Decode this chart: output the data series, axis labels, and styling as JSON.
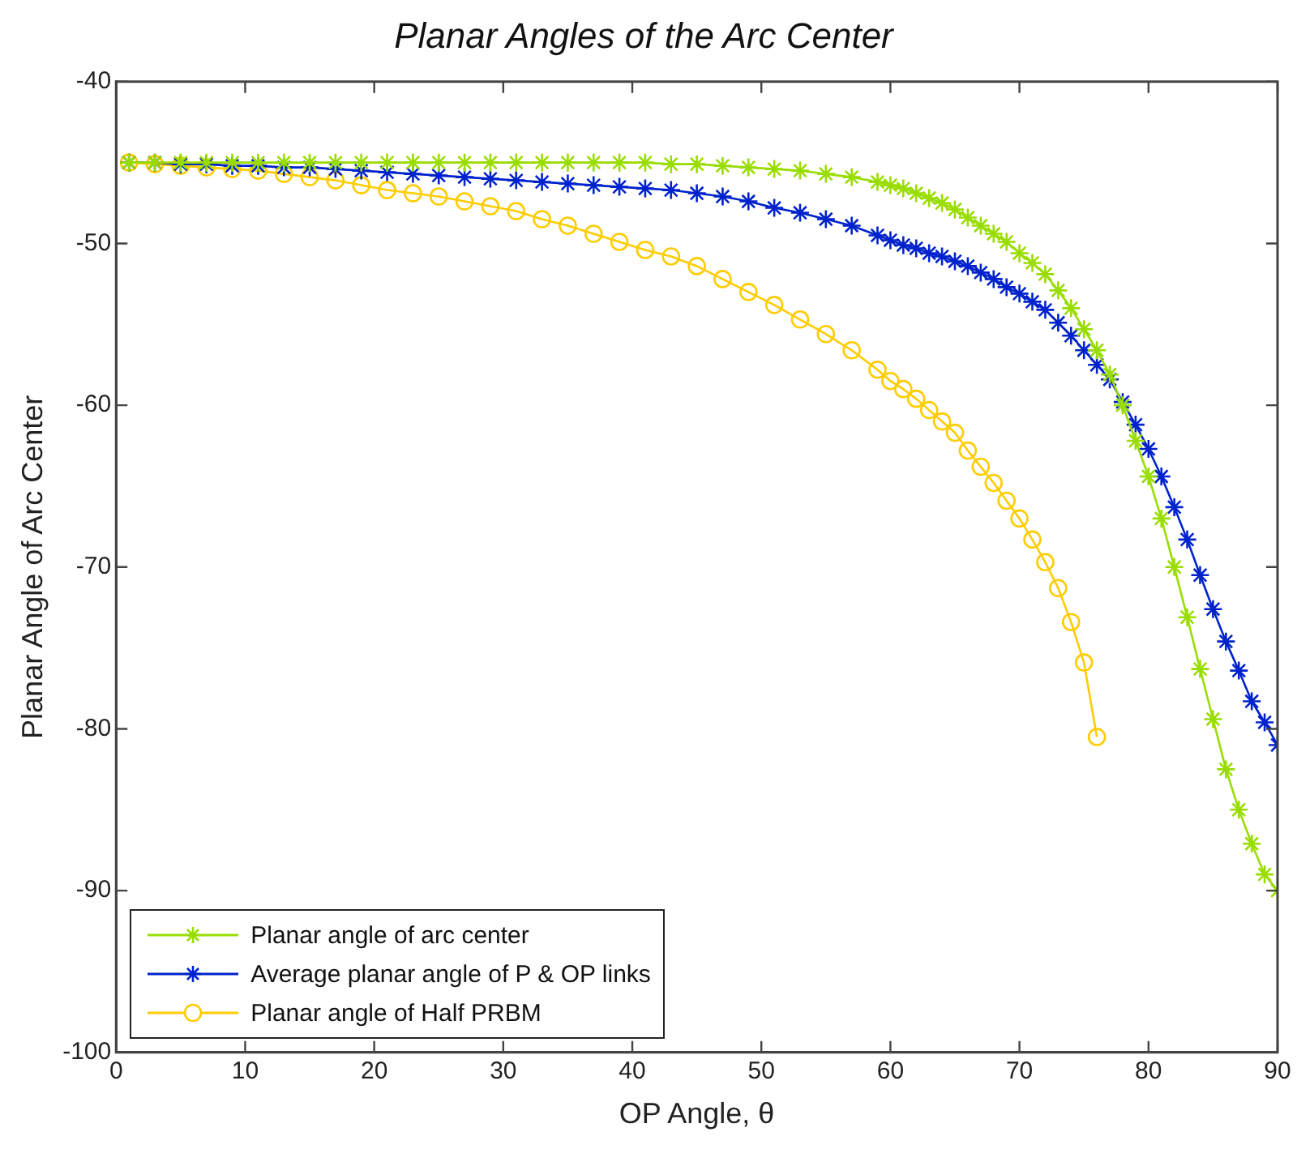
{
  "chart_data": {
    "type": "line",
    "title": "Planar Angles of the Arc Center",
    "xlabel": "OP Angle, θ",
    "ylabel": "Planar Angle of Arc Center",
    "xlim": [
      0,
      90
    ],
    "xticks": [
      0,
      10,
      20,
      30,
      40,
      50,
      60,
      70,
      80,
      90
    ],
    "ylim": [
      -100,
      -40
    ],
    "yticks": [
      -100,
      -90,
      -80,
      -70,
      -60,
      -50,
      -40
    ],
    "grid": false,
    "legend": "bottom left",
    "line_style": "solid",
    "series": [
      {
        "name": "Planar angle of arc center",
        "color": "#99dd00",
        "marker": "cross",
        "x": [
          1,
          3,
          5,
          7,
          9,
          11,
          13,
          15,
          17,
          19,
          21,
          23,
          25,
          27,
          29,
          31,
          33,
          35,
          37,
          39,
          41,
          43,
          45,
          47,
          49,
          51,
          53,
          55,
          57,
          59,
          60,
          61,
          62,
          63,
          64,
          65,
          66,
          67,
          68,
          69,
          70,
          71,
          72,
          73,
          74,
          75,
          76,
          77,
          78,
          79,
          80,
          81,
          82,
          83,
          84,
          85,
          86,
          87,
          88,
          89,
          90
        ],
        "values": [
          -45,
          -45,
          -45,
          -45,
          -45,
          -45,
          -45,
          -45,
          -45,
          -45,
          -45,
          -45,
          -45,
          -45,
          -45,
          -45,
          -45,
          -45,
          -45,
          -45,
          -45,
          -45.1,
          -45.1,
          -45.2,
          -45.3,
          -45.4,
          -45.5,
          -45.7,
          -45.9,
          -46.2,
          -46.4,
          -46.6,
          -46.9,
          -47.2,
          -47.5,
          -47.9,
          -48.4,
          -48.9,
          -49.4,
          -49.9,
          -50.6,
          -51.2,
          -51.9,
          -52.9,
          -54,
          -55.3,
          -56.6,
          -58.1,
          -60,
          -62.2,
          -64.4,
          -67,
          -70,
          -73.1,
          -76.3,
          -79.4,
          -82.5,
          -85,
          -87.1,
          -89,
          -90
        ]
      },
      {
        "name": "Average planar angle of P & OP links",
        "color": "#0022cc",
        "marker": "cross",
        "x": [
          1,
          3,
          5,
          7,
          9,
          11,
          13,
          15,
          17,
          19,
          21,
          23,
          25,
          27,
          29,
          31,
          33,
          35,
          37,
          39,
          41,
          43,
          45,
          47,
          49,
          51,
          53,
          55,
          57,
          59,
          60,
          61,
          62,
          63,
          64,
          65,
          66,
          67,
          68,
          69,
          70,
          71,
          72,
          73,
          74,
          75,
          76,
          77,
          78,
          79,
          80,
          81,
          82,
          83,
          84,
          85,
          86,
          87,
          88,
          89,
          90
        ],
        "values": [
          -45,
          -45,
          -45.1,
          -45.1,
          -45.2,
          -45.2,
          -45.3,
          -45.3,
          -45.4,
          -45.5,
          -45.6,
          -45.7,
          -45.8,
          -45.9,
          -46,
          -46.1,
          -46.2,
          -46.3,
          -46.4,
          -46.5,
          -46.6,
          -46.7,
          -46.9,
          -47.1,
          -47.4,
          -47.8,
          -48.1,
          -48.5,
          -48.9,
          -49.5,
          -49.8,
          -50.1,
          -50.3,
          -50.6,
          -50.8,
          -51.1,
          -51.4,
          -51.8,
          -52.2,
          -52.7,
          -53.1,
          -53.6,
          -54.1,
          -54.9,
          -55.7,
          -56.6,
          -57.5,
          -58.4,
          -59.8,
          -61.2,
          -62.7,
          -64.4,
          -66.3,
          -68.3,
          -70.5,
          -72.6,
          -74.6,
          -76.4,
          -78.3,
          -79.6,
          -81
        ]
      },
      {
        "name": "Planar angle of Half PRBM",
        "color": "#ffcc00",
        "marker": "circle",
        "x": [
          1,
          3,
          5,
          7,
          9,
          11,
          13,
          15,
          17,
          19,
          21,
          23,
          25,
          27,
          29,
          31,
          33,
          35,
          37,
          39,
          41,
          43,
          45,
          47,
          49,
          51,
          53,
          55,
          57,
          59,
          60,
          61,
          62,
          63,
          64,
          65,
          66,
          67,
          68,
          69,
          70,
          71,
          72,
          73,
          74,
          75,
          76
        ],
        "values": [
          -45,
          -45.1,
          -45.2,
          -45.3,
          -45.4,
          -45.5,
          -45.7,
          -45.9,
          -46.1,
          -46.4,
          -46.7,
          -46.9,
          -47.1,
          -47.4,
          -47.7,
          -48,
          -48.5,
          -48.9,
          -49.4,
          -49.9,
          -50.4,
          -50.8,
          -51.4,
          -52.2,
          -53,
          -53.8,
          -54.7,
          -55.6,
          -56.6,
          -57.8,
          -58.5,
          -59,
          -59.6,
          -60.3,
          -61,
          -61.7,
          -62.8,
          -63.8,
          -64.8,
          -65.9,
          -67,
          -68.3,
          -69.7,
          -71.3,
          -73.4,
          -75.9,
          -80.5
        ]
      }
    ]
  }
}
